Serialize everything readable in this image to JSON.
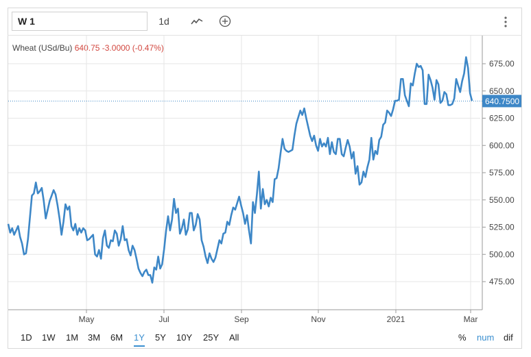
{
  "toolbar": {
    "symbol_value": "W 1",
    "period_label": "1d",
    "chart_type_icon": "line-chart-icon",
    "add_icon": "circle-plus-icon",
    "menu_icon": "vertical-dots-icon"
  },
  "legend": {
    "name": "Wheat (USd/Bu)",
    "price": "640.75",
    "change": "-3.0000 (-0.47%)"
  },
  "colors": {
    "line": "#3d87c7",
    "negative": "#d2473f",
    "accent": "#3a8fd0",
    "grid": "#e6e6e6"
  },
  "ranges": [
    "1D",
    "1W",
    "1M",
    "3M",
    "6M",
    "1Y",
    "5Y",
    "10Y",
    "25Y",
    "All"
  ],
  "active_range": "1Y",
  "modes": [
    "%",
    "num",
    "dif"
  ],
  "active_mode": "num",
  "chart_data": {
    "type": "line",
    "title": "",
    "xlabel": "",
    "ylabel": "",
    "ylim": [
      450,
      690
    ],
    "grid": true,
    "y_ticks": [
      "675.00",
      "650.00",
      "625.00",
      "600.00",
      "575.00",
      "550.00",
      "525.00",
      "500.00",
      "475.00"
    ],
    "x_ticks": [
      "May",
      "Jul",
      "Sep",
      "Nov",
      "2021",
      "Mar"
    ],
    "last_price_label": "640.7500",
    "last_price": 640.75,
    "series": [
      {
        "name": "Wheat (USd/Bu)",
        "values": [
          528,
          520,
          524,
          518,
          522,
          526,
          516,
          510,
          500,
          501,
          514,
          534,
          554,
          556,
          566,
          556,
          558,
          561,
          549,
          533,
          541,
          549,
          554,
          559,
          555,
          545,
          533,
          518,
          530,
          546,
          541,
          544,
          526,
          522,
          528,
          518,
          524,
          520,
          524,
          522,
          513,
          514,
          516,
          518,
          500,
          498,
          504,
          496,
          515,
          522,
          508,
          506,
          513,
          512,
          522,
          519,
          508,
          514,
          526,
          513,
          514,
          504,
          499,
          508,
          504,
          496,
          487,
          483,
          480,
          484,
          486,
          481,
          481,
          474,
          488,
          486,
          498,
          487,
          491,
          505,
          522,
          535,
          522,
          532,
          551,
          538,
          542,
          519,
          524,
          532,
          518,
          523,
          538,
          538,
          522,
          527,
          537,
          532,
          513,
          507,
          498,
          492,
          501,
          496,
          493,
          497,
          505,
          513,
          510,
          519,
          520,
          530,
          527,
          536,
          543,
          541,
          547,
          553,
          545,
          538,
          528,
          536,
          522,
          510,
          548,
          538,
          555,
          576,
          542,
          560,
          546,
          550,
          544,
          552,
          548,
          569,
          570,
          579,
          593,
          606,
          597,
          595,
          594,
          595,
          596,
          609,
          620,
          626,
          632,
          628,
          634,
          625,
          617,
          609,
          604,
          609,
          600,
          595,
          606,
          599,
          602,
          599,
          607,
          592,
          603,
          594,
          592,
          606,
          606,
          592,
          590,
          598,
          605,
          599,
          588,
          594,
          574,
          581,
          564,
          566,
          576,
          571,
          580,
          587,
          607,
          587,
          595,
          592,
          605,
          608,
          619,
          621,
          632,
          630,
          627,
          633,
          641,
          641,
          642,
          661,
          661,
          646,
          641,
          636,
          657,
          655,
          666,
          675,
          672,
          673,
          669,
          638,
          638,
          665,
          660,
          653,
          642,
          660,
          656,
          639,
          641,
          649,
          647,
          637,
          637,
          638,
          643,
          661,
          655,
          649,
          659,
          666,
          681,
          671,
          648,
          641
        ]
      }
    ]
  }
}
